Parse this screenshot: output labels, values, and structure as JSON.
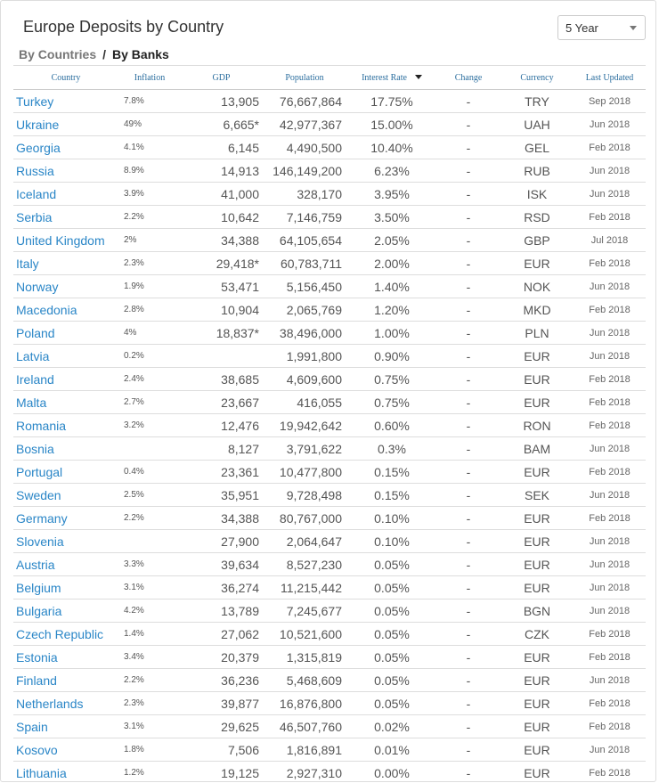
{
  "title": "Europe Deposits by Country",
  "period_select": {
    "value": "5 Year"
  },
  "tabs": {
    "countries": "By Countries",
    "separator": "/",
    "banks": "By Banks"
  },
  "columns": [
    "Country",
    "Inflation",
    "GDP",
    "Population",
    "Interest Rate",
    "Change",
    "Currency",
    "Last Updated"
  ],
  "sort": {
    "column": "Interest Rate",
    "direction": "descending"
  },
  "rows": [
    {
      "country": "Turkey",
      "inflation": "7.8%",
      "gdp": "13,905",
      "population": "76,667,864",
      "rate": "17.75%",
      "change": "-",
      "currency": "TRY",
      "updated": "Sep 2018"
    },
    {
      "country": "Ukraine",
      "inflation": "49%",
      "gdp": "6,665*",
      "population": "42,977,367",
      "rate": "15.00%",
      "change": "-",
      "currency": "UAH",
      "updated": "Jun 2018"
    },
    {
      "country": "Georgia",
      "inflation": "4.1%",
      "gdp": "6,145",
      "population": "4,490,500",
      "rate": "10.40%",
      "change": "-",
      "currency": "GEL",
      "updated": "Feb 2018"
    },
    {
      "country": "Russia",
      "inflation": "8.9%",
      "gdp": "14,913",
      "population": "146,149,200",
      "rate": "6.23%",
      "change": "-",
      "currency": "RUB",
      "updated": "Jun 2018"
    },
    {
      "country": "Iceland",
      "inflation": "3.9%",
      "gdp": "41,000",
      "population": "328,170",
      "rate": "3.95%",
      "change": "-",
      "currency": "ISK",
      "updated": "Jun 2018"
    },
    {
      "country": "Serbia",
      "inflation": "2.2%",
      "gdp": "10,642",
      "population": "7,146,759",
      "rate": "3.50%",
      "change": "-",
      "currency": "RSD",
      "updated": "Feb 2018"
    },
    {
      "country": "United Kingdom",
      "inflation": "2%",
      "gdp": "34,388",
      "population": "64,105,654",
      "rate": "2.05%",
      "change": "-",
      "currency": "GBP",
      "updated": "Jul 2018"
    },
    {
      "country": "Italy",
      "inflation": "2.3%",
      "gdp": "29,418*",
      "population": "60,783,711",
      "rate": "2.00%",
      "change": "-",
      "currency": "EUR",
      "updated": "Feb 2018"
    },
    {
      "country": "Norway",
      "inflation": "1.9%",
      "gdp": "53,471",
      "population": "5,156,450",
      "rate": "1.40%",
      "change": "-",
      "currency": "NOK",
      "updated": "Jun 2018"
    },
    {
      "country": "Macedonia",
      "inflation": "2.8%",
      "gdp": "10,904",
      "population": "2,065,769",
      "rate": "1.20%",
      "change": "-",
      "currency": "MKD",
      "updated": "Feb 2018"
    },
    {
      "country": "Poland",
      "inflation": "4%",
      "gdp": "18,837*",
      "population": "38,496,000",
      "rate": "1.00%",
      "change": "-",
      "currency": "PLN",
      "updated": "Jun 2018"
    },
    {
      "country": "Latvia",
      "inflation": "0.2%",
      "gdp": "",
      "population": "1,991,800",
      "rate": "0.90%",
      "change": "-",
      "currency": "EUR",
      "updated": "Jun 2018"
    },
    {
      "country": "Ireland",
      "inflation": "2.4%",
      "gdp": "38,685",
      "population": "4,609,600",
      "rate": "0.75%",
      "change": "-",
      "currency": "EUR",
      "updated": "Feb 2018"
    },
    {
      "country": "Malta",
      "inflation": "2.7%",
      "gdp": "23,667",
      "population": "416,055",
      "rate": "0.75%",
      "change": "-",
      "currency": "EUR",
      "updated": "Feb 2018"
    },
    {
      "country": "Romania",
      "inflation": "3.2%",
      "gdp": "12,476",
      "population": "19,942,642",
      "rate": "0.60%",
      "change": "-",
      "currency": "RON",
      "updated": "Feb 2018"
    },
    {
      "country": "Bosnia",
      "inflation": "",
      "gdp": "8,127",
      "population": "3,791,622",
      "rate": "0.3%",
      "change": "-",
      "currency": "BAM",
      "updated": "Jun 2018"
    },
    {
      "country": "Portugal",
      "inflation": "0.4%",
      "gdp": "23,361",
      "population": "10,477,800",
      "rate": "0.15%",
      "change": "-",
      "currency": "EUR",
      "updated": "Feb 2018"
    },
    {
      "country": "Sweden",
      "inflation": "2.5%",
      "gdp": "35,951",
      "population": "9,728,498",
      "rate": "0.15%",
      "change": "-",
      "currency": "SEK",
      "updated": "Jun 2018"
    },
    {
      "country": "Germany",
      "inflation": "2.2%",
      "gdp": "34,388",
      "population": "80,767,000",
      "rate": "0.10%",
      "change": "-",
      "currency": "EUR",
      "updated": "Feb 2018"
    },
    {
      "country": "Slovenia",
      "inflation": "",
      "gdp": "27,900",
      "population": "2,064,647",
      "rate": "0.10%",
      "change": "-",
      "currency": "EUR",
      "updated": "Jun 2018"
    },
    {
      "country": "Austria",
      "inflation": "3.3%",
      "gdp": "39,634",
      "population": "8,527,230",
      "rate": "0.05%",
      "change": "-",
      "currency": "EUR",
      "updated": "Jun 2018"
    },
    {
      "country": "Belgium",
      "inflation": "3.1%",
      "gdp": "36,274",
      "population": "11,215,442",
      "rate": "0.05%",
      "change": "-",
      "currency": "EUR",
      "updated": "Jun 2018"
    },
    {
      "country": "Bulgaria",
      "inflation": "4.2%",
      "gdp": "13,789",
      "population": "7,245,677",
      "rate": "0.05%",
      "change": "-",
      "currency": "BGN",
      "updated": "Jun 2018"
    },
    {
      "country": "Czech Republic",
      "inflation": "1.4%",
      "gdp": "27,062",
      "population": "10,521,600",
      "rate": "0.05%",
      "change": "-",
      "currency": "CZK",
      "updated": "Feb 2018"
    },
    {
      "country": "Estonia",
      "inflation": "3.4%",
      "gdp": "20,379",
      "population": "1,315,819",
      "rate": "0.05%",
      "change": "-",
      "currency": "EUR",
      "updated": "Feb 2018"
    },
    {
      "country": "Finland",
      "inflation": "2.2%",
      "gdp": "36,236",
      "population": "5,468,609",
      "rate": "0.05%",
      "change": "-",
      "currency": "EUR",
      "updated": "Jun 2018"
    },
    {
      "country": "Netherlands",
      "inflation": "2.3%",
      "gdp": "39,877",
      "population": "16,876,800",
      "rate": "0.05%",
      "change": "-",
      "currency": "EUR",
      "updated": "Feb 2018"
    },
    {
      "country": "Spain",
      "inflation": "3.1%",
      "gdp": "29,625",
      "population": "46,507,760",
      "rate": "0.02%",
      "change": "-",
      "currency": "EUR",
      "updated": "Feb 2018"
    },
    {
      "country": "Kosovo",
      "inflation": "1.8%",
      "gdp": "7,506",
      "population": "1,816,891",
      "rate": "0.01%",
      "change": "-",
      "currency": "EUR",
      "updated": "Jun 2018"
    },
    {
      "country": "Lithuania",
      "inflation": "1.2%",
      "gdp": "19,125",
      "population": "2,927,310",
      "rate": "0.00%",
      "change": "-",
      "currency": "EUR",
      "updated": "Feb 2018"
    }
  ]
}
